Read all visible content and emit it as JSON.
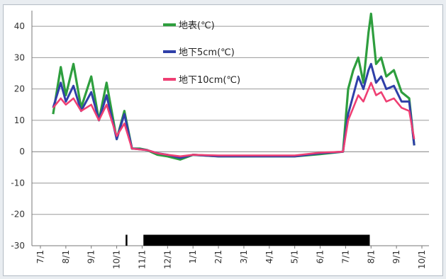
{
  "chart_data": {
    "type": "line",
    "title": "",
    "xlabel": "",
    "ylabel": "",
    "ylim": [
      -30,
      45
    ],
    "y_ticks": [
      40,
      30,
      20,
      10,
      0,
      -10,
      -20,
      -30
    ],
    "y_tick_labels": [
      "40",
      "30",
      "20",
      "10",
      "0",
      "-10",
      "-20",
      "-30"
    ],
    "x_tick_labels": [
      "7/1",
      "8/1",
      "9/1",
      "10/1",
      "11/1",
      "12/1",
      "1/1",
      "2/1",
      "3/1",
      "4/1",
      "5/1",
      "6/1",
      "7/1",
      "8/1",
      "9/1",
      "10/1"
    ],
    "grid": "horizontal",
    "legend_position": "top-center",
    "series": [
      {
        "name": "地表(℃)",
        "color": "#2e9e3e",
        "x": [
          0.5,
          0.8,
          1.0,
          1.3,
          1.6,
          2.0,
          2.3,
          2.6,
          3.0,
          3.3,
          3.6,
          3.9,
          4.2,
          4.6,
          5.0,
          5.5,
          6.0,
          7.0,
          8.0,
          9.0,
          10.0,
          11.0,
          11.9,
          12.1,
          12.3,
          12.5,
          12.7,
          12.9,
          13.0,
          13.2,
          13.4,
          13.6,
          13.9,
          14.2,
          14.5,
          14.7
        ],
        "y": [
          12,
          27,
          18,
          28,
          14,
          24,
          10,
          22,
          4,
          13,
          1,
          1,
          0.5,
          -1,
          -1.5,
          -2.5,
          -1,
          -1.5,
          -1.5,
          -1.5,
          -1.5,
          -0.8,
          0,
          20,
          26,
          30,
          22,
          38,
          44,
          28,
          30,
          24,
          26,
          19,
          17,
          2
        ]
      },
      {
        "name": "地下5cm(℃)",
        "color": "#2f3fa8",
        "x": [
          0.5,
          0.8,
          1.0,
          1.3,
          1.6,
          2.0,
          2.3,
          2.6,
          3.0,
          3.3,
          3.6,
          3.9,
          4.2,
          4.6,
          5.0,
          5.5,
          6.0,
          7.0,
          8.0,
          9.0,
          10.0,
          11.0,
          11.9,
          12.1,
          12.3,
          12.5,
          12.7,
          12.9,
          13.0,
          13.2,
          13.4,
          13.6,
          13.9,
          14.2,
          14.5,
          14.7
        ],
        "y": [
          14,
          22,
          16,
          21,
          13,
          19,
          10,
          18,
          4,
          12,
          1,
          0.8,
          0.5,
          -0.5,
          -1,
          -2,
          -1,
          -1.5,
          -1.5,
          -1.5,
          -1.5,
          -0.5,
          0,
          12,
          18,
          24,
          20,
          26,
          28,
          22,
          24,
          20,
          21,
          16,
          16,
          2
        ]
      },
      {
        "name": "地下10cm(℃)",
        "color": "#ef3f73",
        "x": [
          0.5,
          0.8,
          1.0,
          1.3,
          1.6,
          2.0,
          2.3,
          2.6,
          3.0,
          3.3,
          3.6,
          3.9,
          4.2,
          4.6,
          5.0,
          5.5,
          6.0,
          7.0,
          8.0,
          9.0,
          10.0,
          11.0,
          11.9,
          12.1,
          12.3,
          12.5,
          12.7,
          12.9,
          13.0,
          13.2,
          13.4,
          13.6,
          13.9,
          14.2,
          14.5,
          14.7
        ],
        "y": [
          14,
          17,
          15,
          17,
          13,
          15,
          10,
          15,
          5,
          9,
          1,
          0.7,
          0.5,
          -0.5,
          -1,
          -1.5,
          -1,
          -1.2,
          -1.2,
          -1.2,
          -1.2,
          -0.3,
          0,
          10,
          14,
          18,
          16,
          20,
          22,
          18,
          19,
          16,
          17,
          14,
          13,
          4
        ]
      }
    ],
    "snow_cover_bars": [
      [
        3.35,
        3.42
      ],
      [
        4.05,
        12.95
      ]
    ]
  }
}
